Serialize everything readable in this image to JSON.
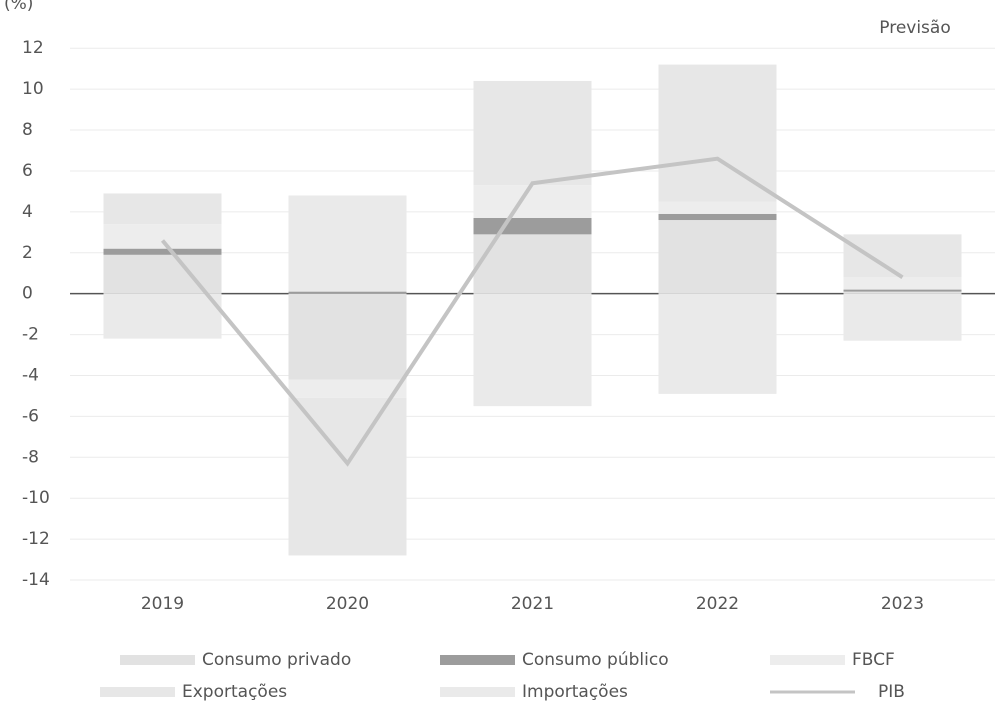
{
  "chart_data": {
    "type": "bar",
    "y_label": "(%)",
    "annotation": "Previsão",
    "categories": [
      "2019",
      "2020",
      "2021",
      "2022",
      "2023"
    ],
    "series": [
      {
        "name": "Consumo privado",
        "color": "#e2e2e2",
        "values": [
          1.9,
          -4.2,
          2.9,
          3.6,
          0.1
        ]
      },
      {
        "name": "Consumo público",
        "color": "#9c9c9c",
        "values": [
          0.3,
          0.1,
          0.8,
          0.3,
          0.1
        ]
      },
      {
        "name": "FBCF",
        "color": "#ededed",
        "values": [
          1.2,
          -0.9,
          1.6,
          0.6,
          0.6
        ]
      },
      {
        "name": "Exportações",
        "color": "#e7e7e7",
        "values": [
          1.5,
          -7.7,
          5.1,
          6.7,
          2.1
        ]
      },
      {
        "name": "Importações",
        "color": "#eaeaea",
        "values": [
          -2.2,
          4.7,
          -5.5,
          -4.9,
          -2.3
        ]
      },
      {
        "name": "PIB",
        "color": "#c4c4c4",
        "type": "line",
        "values": [
          2.6,
          -8.3,
          5.4,
          6.6,
          0.8
        ]
      }
    ],
    "ylim": [
      -14,
      12.5
    ],
    "yticks": [
      12,
      10,
      8,
      6,
      4,
      2,
      0,
      -2,
      -4,
      -6,
      -8,
      -10,
      -12,
      -14
    ],
    "grid": true
  }
}
